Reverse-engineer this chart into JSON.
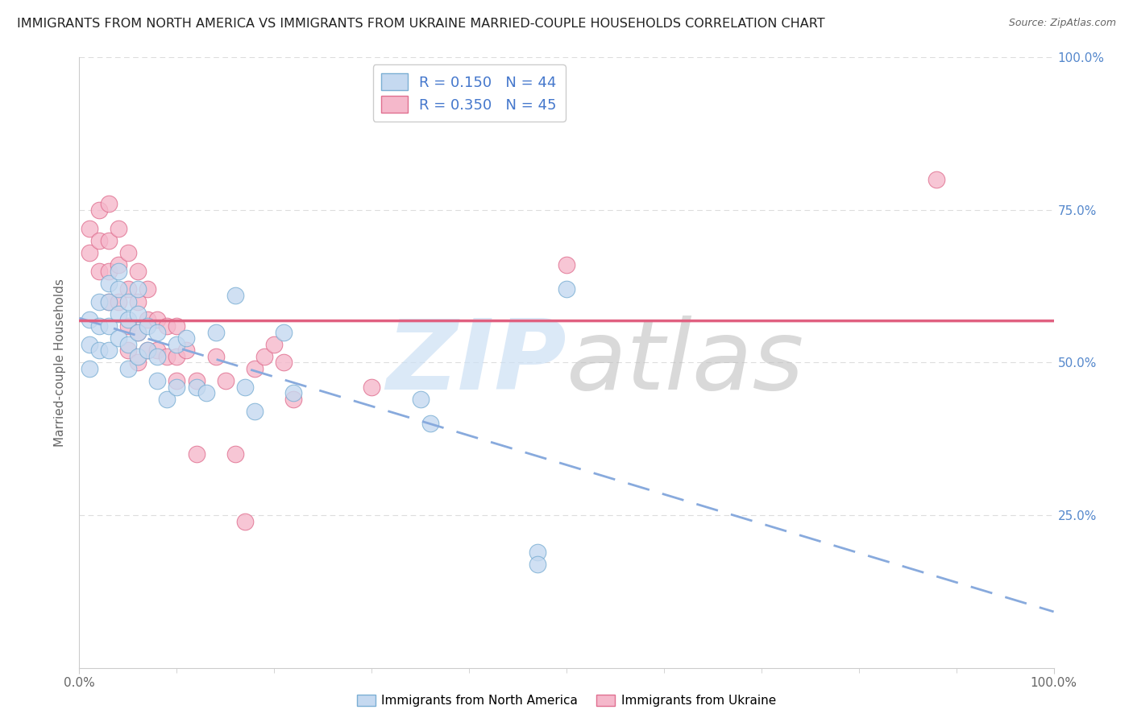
{
  "title": "IMMIGRANTS FROM NORTH AMERICA VS IMMIGRANTS FROM UKRAINE MARRIED-COUPLE HOUSEHOLDS CORRELATION CHART",
  "source": "Source: ZipAtlas.com",
  "ylabel": "Married-couple Households",
  "R_north_america": 0.15,
  "N_north_america": 44,
  "R_ukraine": 0.35,
  "N_ukraine": 45,
  "color_na_fill": "#c5d9f0",
  "color_na_edge": "#7bafd4",
  "color_uk_fill": "#f5b8cb",
  "color_uk_edge": "#e07090",
  "line_color_na": "#88aadd",
  "line_color_uk": "#e06080",
  "watermark_zip_color": "#cce0f5",
  "watermark_atlas_color": "#c0c0c0",
  "xlim": [
    0.0,
    1.0
  ],
  "ylim": [
    0.0,
    1.0
  ],
  "ytick_positions": [
    0.25,
    0.5,
    0.75,
    1.0
  ],
  "ytick_labels": [
    "25.0%",
    "50.0%",
    "75.0%",
    "100.0%"
  ],
  "bottom_label_na": "Immigrants from North America",
  "bottom_label_uk": "Immigrants from Ukraine",
  "na_x": [
    0.01,
    0.01,
    0.01,
    0.02,
    0.02,
    0.02,
    0.03,
    0.03,
    0.03,
    0.03,
    0.04,
    0.04,
    0.04,
    0.04,
    0.05,
    0.05,
    0.05,
    0.05,
    0.06,
    0.06,
    0.06,
    0.06,
    0.07,
    0.07,
    0.08,
    0.08,
    0.08,
    0.09,
    0.1,
    0.1,
    0.11,
    0.12,
    0.13,
    0.14,
    0.16,
    0.17,
    0.18,
    0.21,
    0.22,
    0.35,
    0.36,
    0.47,
    0.47,
    0.5
  ],
  "na_y": [
    0.57,
    0.53,
    0.49,
    0.6,
    0.56,
    0.52,
    0.63,
    0.6,
    0.56,
    0.52,
    0.65,
    0.62,
    0.58,
    0.54,
    0.6,
    0.57,
    0.53,
    0.49,
    0.62,
    0.58,
    0.55,
    0.51,
    0.56,
    0.52,
    0.55,
    0.51,
    0.47,
    0.44,
    0.53,
    0.46,
    0.54,
    0.46,
    0.45,
    0.55,
    0.61,
    0.46,
    0.42,
    0.55,
    0.45,
    0.44,
    0.4,
    0.19,
    0.17,
    0.62
  ],
  "uk_x": [
    0.01,
    0.01,
    0.02,
    0.02,
    0.02,
    0.03,
    0.03,
    0.03,
    0.03,
    0.04,
    0.04,
    0.04,
    0.05,
    0.05,
    0.05,
    0.05,
    0.06,
    0.06,
    0.06,
    0.06,
    0.07,
    0.07,
    0.07,
    0.08,
    0.08,
    0.09,
    0.09,
    0.1,
    0.1,
    0.1,
    0.11,
    0.12,
    0.12,
    0.14,
    0.15,
    0.16,
    0.17,
    0.18,
    0.19,
    0.2,
    0.21,
    0.22,
    0.3,
    0.5,
    0.88
  ],
  "uk_y": [
    0.72,
    0.68,
    0.75,
    0.7,
    0.65,
    0.76,
    0.7,
    0.65,
    0.6,
    0.72,
    0.66,
    0.6,
    0.68,
    0.62,
    0.56,
    0.52,
    0.65,
    0.6,
    0.55,
    0.5,
    0.62,
    0.57,
    0.52,
    0.57,
    0.52,
    0.56,
    0.51,
    0.56,
    0.51,
    0.47,
    0.52,
    0.47,
    0.35,
    0.51,
    0.47,
    0.35,
    0.24,
    0.49,
    0.51,
    0.53,
    0.5,
    0.44,
    0.46,
    0.66,
    0.8
  ],
  "background_color": "#ffffff",
  "grid_color": "#dddddd",
  "title_color": "#222222",
  "right_tick_color": "#5588cc",
  "marker_size": 220,
  "title_fontsize": 11.5,
  "source_fontsize": 9,
  "axis_label_fontsize": 11,
  "tick_fontsize": 11,
  "legend_fontsize": 13
}
